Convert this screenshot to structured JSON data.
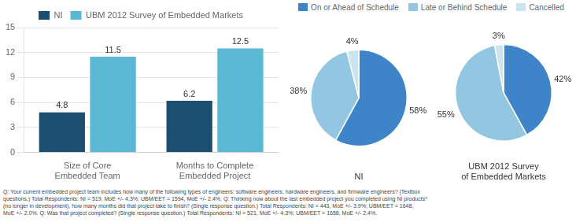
{
  "chart_data": [
    {
      "type": "bar",
      "categories": [
        "Size of Core\nEmbedded Team",
        "Months to Complete\nEmbedded Project"
      ],
      "series": [
        {
          "name": "NI",
          "color": "#1b4f72",
          "values": [
            4.8,
            6.2
          ]
        },
        {
          "name": "UBM 2012 Survey of Embedded Markets",
          "color": "#5bb8d4",
          "values": [
            11.5,
            12.5
          ]
        }
      ],
      "ylim": [
        0,
        15
      ],
      "yticks": [
        0,
        3,
        6,
        9,
        12,
        15
      ],
      "grid": true,
      "legend": "top",
      "data_labels": true,
      "annotations": [
        "Q: Your current embedded project team includes how many of the following types of engineers: software engineers, hardware engineers, and firmware engineers? (Textbox\nquestions.) Total Respondents: NI = 519, MoE +/- 4.3%; UBM/EET = 1594, MoE +/- 2.4%. Q: Thinking now about the last embedded project you completed using NI products*\n(no longer in development), how many months did that project take to finish? (Single response question.) Total Respondents: NI = 443, MoE +/- 3.9%; UBM/EET = 1648,\nMoE +/- 2.0%. Q: Was that project completed? (Single response question.) Total Respondents: NI = 521, MoE +/- 4.3%; UBM/EET = 1658, MoE +/- 2.4%."
      ]
    },
    {
      "type": "pie",
      "title": "NI",
      "categories": [
        "On or Ahead of Schedule",
        "Late or Behind Schedule",
        "Cancelled"
      ],
      "values": [
        58,
        38,
        4
      ],
      "value_labels": [
        "58%",
        "38%",
        "4%"
      ],
      "colors": [
        "#3d85c8",
        "#93c6e0",
        "#cce4f0"
      ],
      "data_labels": true,
      "legend": "top"
    },
    {
      "type": "pie",
      "title": "UBM 2012 Survey\nof Embedded Markets",
      "categories": [
        "On or Ahead of Schedule",
        "Late or Behind Schedule",
        "Cancelled"
      ],
      "values": [
        42,
        55,
        3
      ],
      "value_labels": [
        "42%",
        "55%",
        "3%"
      ],
      "colors": [
        "#3d85c8",
        "#93c6e0",
        "#cce4f0"
      ],
      "data_labels": true
    }
  ]
}
